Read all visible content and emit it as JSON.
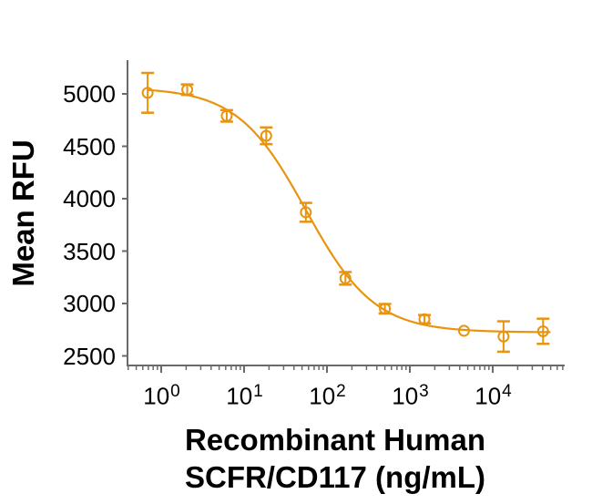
{
  "chart_data": {
    "type": "scatter",
    "title": "",
    "ylabel": "Mean RFU",
    "xlabel_line1": "Recombinant Human",
    "xlabel_line2": "SCFR/CD117 (ng/mL)",
    "x_scale": "log10",
    "xlim": [
      0.4,
      70000
    ],
    "ylim": [
      2400,
      5320
    ],
    "grid": false,
    "legend": "none",
    "y_ticks": [
      5000,
      4500,
      4000,
      3500,
      3000,
      2500
    ],
    "x_ticks": [
      {
        "base": "10",
        "exp": "0",
        "value": 1
      },
      {
        "base": "10",
        "exp": "1",
        "value": 10
      },
      {
        "base": "10",
        "exp": "2",
        "value": 100
      },
      {
        "base": "10",
        "exp": "3",
        "value": 1000
      },
      {
        "base": "10",
        "exp": "4",
        "value": 10000
      }
    ],
    "series": [
      {
        "name": "Mean RFU",
        "marker": "open-circle",
        "x": [
          0.686,
          2.06,
          6.17,
          18.5,
          55.6,
          167,
          500,
          1500,
          4500,
          13500,
          40500
        ],
        "y": [
          5010,
          5040,
          4790,
          4600,
          3870,
          3240,
          2950,
          2850,
          2740,
          2685,
          2735
        ],
        "yerr": [
          190,
          50,
          55,
          80,
          90,
          60,
          45,
          40,
          0,
          145,
          120
        ]
      }
    ],
    "fit_curve": {
      "model": "4PL",
      "top": 5060,
      "bottom": 2725,
      "ic50": 55.6,
      "hill": 1.05,
      "x_start": 0.686,
      "x_end": 50000
    },
    "colors": {
      "curve": "#E8940F",
      "axis": "#6a6a6a",
      "text": "#000000",
      "background": "#ffffff"
    }
  }
}
